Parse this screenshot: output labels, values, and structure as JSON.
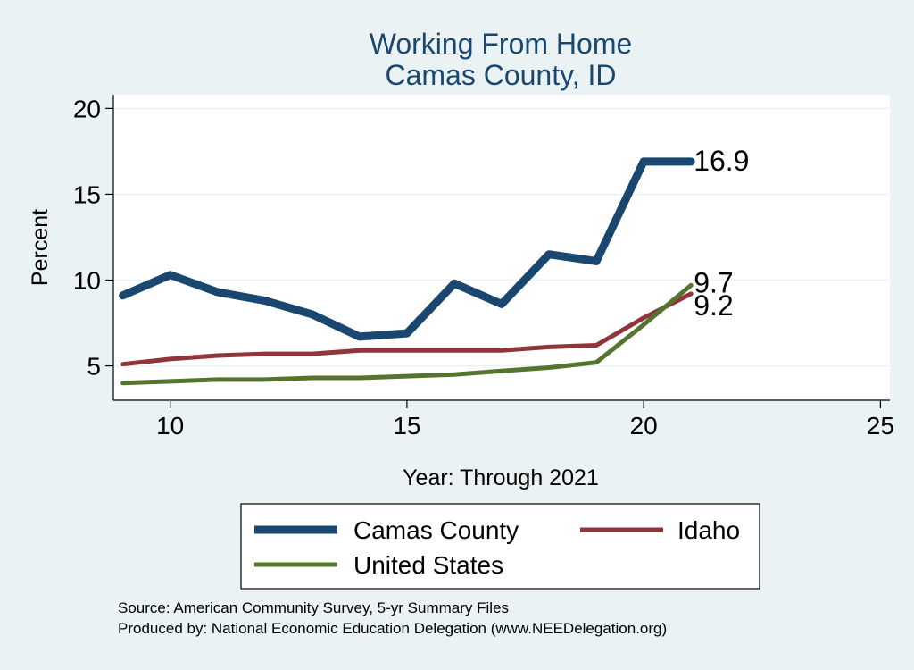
{
  "chart_data": {
    "type": "line",
    "title": "Working From Home",
    "subtitle": "Camas County, ID",
    "xlabel": "Year: Through 2021",
    "ylabel": "Percent",
    "xlim": [
      8.8,
      25.2
    ],
    "ylim": [
      3.0,
      20.8
    ],
    "xticks": [
      10,
      15,
      20,
      25
    ],
    "yticks": [
      5,
      10,
      15,
      20
    ],
    "grid": true,
    "legend_position": "bottom",
    "x": [
      9,
      10,
      11,
      12,
      13,
      14,
      15,
      16,
      17,
      18,
      19,
      20,
      21
    ],
    "series": [
      {
        "name": "Camas County",
        "color": "#1a476f",
        "values": [
          9.1,
          10.3,
          9.3,
          8.8,
          8.0,
          6.7,
          6.9,
          9.8,
          8.6,
          11.5,
          11.1,
          16.9,
          16.9
        ],
        "end_label": "16.9"
      },
      {
        "name": "Idaho",
        "color": "#90353b",
        "values": [
          5.1,
          5.4,
          5.6,
          5.7,
          5.7,
          5.9,
          5.9,
          5.9,
          5.9,
          6.1,
          6.2,
          7.8,
          9.2
        ],
        "end_label": "9.2"
      },
      {
        "name": "United States",
        "color": "#55752f",
        "values": [
          4.0,
          4.1,
          4.2,
          4.2,
          4.3,
          4.3,
          4.4,
          4.5,
          4.7,
          4.9,
          5.2,
          7.4,
          9.7
        ],
        "end_label": "9.7"
      }
    ]
  },
  "footer": {
    "source": "Source: American Community Survey, 5-yr Summary Files",
    "produced": "Produced by: National Economic Education Delegation (www.NEEDelegation.org)"
  }
}
